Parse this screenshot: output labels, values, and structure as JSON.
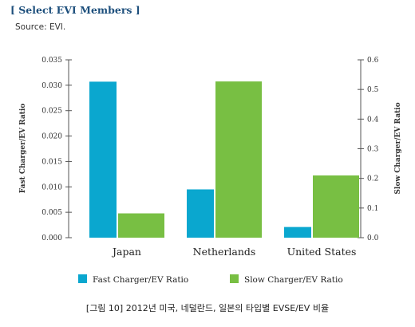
{
  "header": {
    "title": "[ Select EVI Members ]",
    "source": "Source: EVI."
  },
  "caption": "[그림 10] 2012년 미국, 네덜란드, 일본의 타입별 EVSE/EV 비율",
  "colors": {
    "fast": "#0aa7cf",
    "slow": "#78bf43",
    "title": "#1d4f7c",
    "axis": "#555555"
  },
  "chart_data": {
    "type": "bar",
    "categories": [
      "Japan",
      "Netherlands",
      "United States"
    ],
    "series": [
      {
        "name": "Fast Charger/EV Ratio",
        "axis": "left",
        "values": [
          0.0307,
          0.0095,
          0.0021
        ]
      },
      {
        "name": "Slow Charger/EV Ratio",
        "axis": "right",
        "values": [
          0.082,
          0.527,
          0.21
        ]
      }
    ],
    "ylabel_left": "Fast Charger/EV Ratio",
    "ylabel_right": "Slow Charger/EV Ratio",
    "ylim_left": [
      0,
      0.035
    ],
    "ylim_right": [
      0,
      0.6
    ],
    "yticks_left": [
      "0.000",
      "0.005",
      "0.010",
      "0.015",
      "0.020",
      "0.025",
      "0.030",
      "0.035"
    ],
    "yticks_right": [
      "0.0",
      "0.1",
      "0.2",
      "0.3",
      "0.4",
      "0.5",
      "0.6"
    ],
    "grid": false,
    "legend_position": "bottom"
  }
}
